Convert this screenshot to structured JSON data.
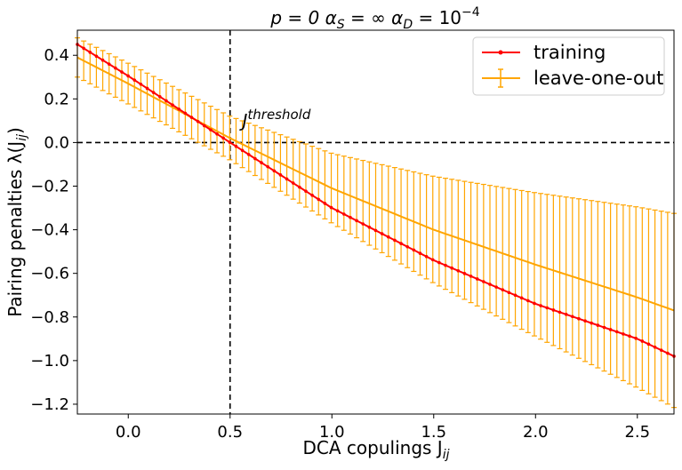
{
  "chart_data": {
    "type": "line",
    "title": {
      "base": "p = 0   α",
      "s_sub": "S",
      "s_mid": " = ∞   α",
      "d_sub": "D",
      "d_mid": " = 10",
      "d_sup": "−4"
    },
    "xlabel": {
      "text": "DCA copulings   J",
      "sub": "ij"
    },
    "ylabel": {
      "text": "Pairing penalties   λ(J",
      "sub": "ij",
      "close": ")"
    },
    "xlim": [
      -0.25,
      2.68
    ],
    "ylim": [
      -1.245,
      0.515
    ],
    "x_ticks": [
      0.0,
      0.5,
      1.0,
      1.5,
      2.0,
      2.5
    ],
    "x_tick_labels": [
      "0.0",
      "0.5",
      "1.0",
      "1.5",
      "2.0",
      "2.5"
    ],
    "y_ticks": [
      0.4,
      0.2,
      0.0,
      -0.2,
      -0.4,
      -0.6,
      -0.8,
      -1.0,
      -1.2
    ],
    "y_tick_labels": [
      "0.4",
      "0.2",
      "0.0",
      "−0.2",
      "−0.4",
      "−0.6",
      "−0.8",
      "−1.0",
      "−1.2"
    ],
    "grid": false,
    "legend_position": "top-right",
    "reference_lines": {
      "vertical_x": 0.5,
      "horizontal_y": 0.0,
      "style": "dashed"
    },
    "annotation": {
      "text": "J",
      "sup": "threshold",
      "x": 0.56,
      "y": 0.07
    },
    "series": [
      {
        "name": "training",
        "color": "#ff0000",
        "marker": "dot",
        "x_range": [
          -0.25,
          2.68
        ],
        "n_points": 95,
        "values_at": {
          "x": [
            -0.25,
            0.0,
            0.5,
            1.0,
            1.5,
            2.0,
            2.5,
            2.68
          ],
          "y": [
            0.45,
            0.305,
            0.0,
            -0.3,
            -0.54,
            -0.74,
            -0.9,
            -0.98
          ]
        }
      },
      {
        "name": "leave-one-out",
        "color": "#ffa500",
        "marker": "errorbar",
        "x_range": [
          -0.25,
          2.68
        ],
        "n_points": 95,
        "values_at": {
          "x": [
            -0.25,
            0.0,
            0.5,
            1.0,
            1.5,
            2.0,
            2.5,
            2.68
          ],
          "y": [
            0.39,
            0.27,
            0.02,
            -0.21,
            -0.4,
            -0.56,
            -0.71,
            -0.77
          ]
        },
        "error_half_width_at": {
          "x": [
            -0.25,
            0.5,
            1.0,
            2.68
          ],
          "e": [
            0.09,
            0.1,
            0.16,
            0.445
          ]
        }
      }
    ]
  }
}
